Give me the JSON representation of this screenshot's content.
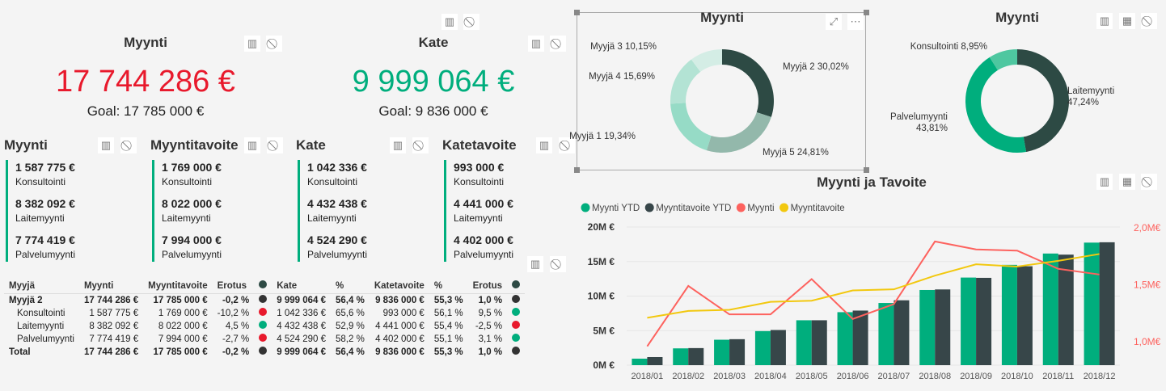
{
  "icons": {
    "drill": "drill-filter-icon",
    "block": "no-filter-icon",
    "expand": "focus-mode-icon",
    "more": "more-options-icon",
    "bars": "bar-chart-icon"
  },
  "kpi_sales": {
    "title": "Myynti",
    "value": "17 744 286 €",
    "goal": "Goal: 17 785 000 €",
    "color": "#e8192c"
  },
  "kpi_margin": {
    "title": "Kate",
    "value": "9 999 064 €",
    "goal": "Goal: 9 836 000 €",
    "color": "#00ae7d"
  },
  "cards": [
    {
      "title": "Myynti",
      "items": [
        {
          "v": "1 587 775 €",
          "l": "Konsultointi"
        },
        {
          "v": "8 382 092 €",
          "l": "Laitemyynti"
        },
        {
          "v": "7 774 419 €",
          "l": "Palvelumyynti"
        }
      ]
    },
    {
      "title": "Myyntitavoite",
      "items": [
        {
          "v": "1 769 000 €",
          "l": "Konsultointi"
        },
        {
          "v": "8 022 000 €",
          "l": "Laitemyynti"
        },
        {
          "v": "7 994 000 €",
          "l": "Palvelumyynti"
        }
      ]
    },
    {
      "title": "Kate",
      "items": [
        {
          "v": "1 042 336 €",
          "l": "Konsultointi"
        },
        {
          "v": "4 432 438 €",
          "l": "Laitemyynti"
        },
        {
          "v": "4 524 290 €",
          "l": "Palvelumyynti"
        }
      ]
    },
    {
      "title": "Katetavoite",
      "items": [
        {
          "v": "993 000 €",
          "l": "Konsultointi"
        },
        {
          "v": "4 441 000 €",
          "l": "Laitemyynti"
        },
        {
          "v": "4 402 000 €",
          "l": "Palvelumyynti"
        }
      ]
    }
  ],
  "table": {
    "headers": [
      "Myyjä",
      "Myynti",
      "Myyntitavoite",
      "Erotus",
      "●",
      "Kate",
      "%",
      "Katetavoite",
      "%",
      "Erotus",
      "●"
    ],
    "rows": [
      {
        "c": [
          "Myyjä 2",
          "17 744 286 €",
          "17 785 000 €",
          "-0,2 %",
          "9 999 064 €",
          "56,4 %",
          "9 836 000 €",
          "55,3 %",
          "1,0 %"
        ],
        "d1": "#333333",
        "d2": "#333333",
        "type": "b"
      },
      {
        "c": [
          "Konsultointi",
          "1 587 775 €",
          "1 769 000 €",
          "-10,2 %",
          "1 042 336 €",
          "65,6 %",
          "993 000 €",
          "56,1 %",
          "9,5 %"
        ],
        "d1": "#e8192c",
        "d2": "#00ae7d",
        "type": "sub"
      },
      {
        "c": [
          "Laitemyynti",
          "8 382 092 €",
          "8 022 000 €",
          "4,5 %",
          "4 432 438 €",
          "52,9 %",
          "4 441 000 €",
          "55,4 %",
          "-2,5 %"
        ],
        "d1": "#00ae7d",
        "d2": "#e8192c",
        "type": "sub"
      },
      {
        "c": [
          "Palvelumyynti",
          "7 774 419 €",
          "7 994 000 €",
          "-2,7 %",
          "4 524 290 €",
          "58,2 %",
          "4 402 000 €",
          "55,1 %",
          "3,1 %"
        ],
        "d1": "#e8192c",
        "d2": "#00ae7d",
        "type": "sub"
      },
      {
        "c": [
          "Total",
          "17 744 286 €",
          "17 785 000 €",
          "-0,2 %",
          "9 999 064 €",
          "56,4 %",
          "9 836 000 €",
          "55,3 %",
          "1,0 %"
        ],
        "d1": "#333333",
        "d2": "#333333",
        "type": "b"
      }
    ]
  },
  "chart_data": [
    {
      "type": "pie",
      "title": "Myynti",
      "donut": true,
      "slices": [
        {
          "label": "Myyjä 2 30,02%",
          "value": 30.02,
          "color": "#2d4a44"
        },
        {
          "label": "Myyjä 5 24,81%",
          "value": 24.81,
          "color": "#93b8ab"
        },
        {
          "label": "Myyjä 1 19,34%",
          "value": 19.34,
          "color": "#96dbc6"
        },
        {
          "label": "Myyjä 4 15,69%",
          "value": 15.69,
          "color": "#b3e3d4"
        },
        {
          "label": "Myyjä 3 10,15%",
          "value": 10.15,
          "color": "#d4ede5"
        }
      ]
    },
    {
      "type": "pie",
      "title": "Myynti",
      "donut": true,
      "slices": [
        {
          "label": "Laitemyynti",
          "pct": "47,24%",
          "value": 47.24,
          "color": "#2d4a44"
        },
        {
          "label": "Palvelumyynti",
          "pct": "43,81%",
          "value": 43.81,
          "color": "#00ae7d"
        },
        {
          "label": "Konsultointi 8,95%",
          "value": 8.95,
          "color": "#4ec7a0"
        }
      ]
    },
    {
      "type": "bar",
      "title": "Myynti ja Tavoite",
      "categories": [
        "2018/01",
        "2018/02",
        "2018/03",
        "2018/04",
        "2018/05",
        "2018/06",
        "2018/07",
        "2018/08",
        "2018/09",
        "2018/10",
        "2018/11",
        "2018/12"
      ],
      "yticks": [
        "0M €",
        "5M €",
        "10M €",
        "15M €",
        "20M €"
      ],
      "ylim": [
        0,
        20
      ],
      "y2ticks": [
        "1,0M€",
        "1,5M€",
        "2,0M€"
      ],
      "y2lim": [
        0.8,
        2.0
      ],
      "series": [
        {
          "name": "Myynti YTD",
          "kind": "bar",
          "axis": "left",
          "color": "#00ae7d",
          "values": [
            0.94,
            2.43,
            3.68,
            4.93,
            6.5,
            7.67,
            9.0,
            10.88,
            12.68,
            14.52,
            16.16,
            17.74
          ]
        },
        {
          "name": "Myyntitavoite YTD",
          "kind": "bar",
          "axis": "left",
          "color": "#374649",
          "values": [
            1.17,
            2.47,
            3.76,
            5.09,
            6.5,
            7.9,
            9.39,
            10.96,
            12.64,
            14.32,
            16.0,
            17.79
          ]
        },
        {
          "name": "Myynti",
          "kind": "line",
          "axis": "right",
          "color": "#fd625e",
          "values": [
            0.96,
            1.49,
            1.24,
            1.24,
            1.55,
            1.2,
            1.33,
            1.88,
            1.81,
            1.8,
            1.64,
            1.59
          ]
        },
        {
          "name": "Myyntitavoite",
          "kind": "line",
          "axis": "right",
          "color": "#f2c80f",
          "values": [
            1.21,
            1.27,
            1.28,
            1.35,
            1.36,
            1.45,
            1.46,
            1.58,
            1.68,
            1.66,
            1.71,
            1.77
          ]
        }
      ]
    }
  ]
}
